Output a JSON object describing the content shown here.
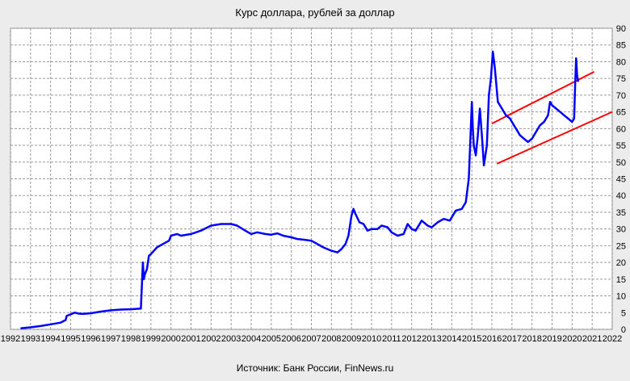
{
  "chart_data": {
    "type": "line",
    "title": "Курс доллара,  рублей  за доллар",
    "source": "Источник: Банк России, FinNews.ru",
    "xlabel": "",
    "ylabel": "",
    "xlim": [
      1992,
      2022
    ],
    "ylim": [
      0,
      90
    ],
    "x_ticks": [
      1992,
      1993,
      1994,
      1995,
      1996,
      1997,
      1998,
      1999,
      2000,
      2001,
      2002,
      2003,
      2004,
      2005,
      2006,
      2007,
      2008,
      2009,
      2010,
      2011,
      2012,
      2013,
      2014,
      2015,
      2016,
      2017,
      2018,
      2019,
      2020,
      2021,
      2022
    ],
    "y_ticks": [
      0,
      5,
      10,
      15,
      20,
      25,
      30,
      35,
      40,
      45,
      50,
      55,
      60,
      65,
      70,
      75,
      80,
      85,
      90
    ],
    "grid": true,
    "y_axis_position": "right",
    "series": [
      {
        "color": "#0000ff",
        "x": [
          1992.5,
          1993.0,
          1993.5,
          1994.0,
          1994.5,
          1994.75,
          1994.8,
          1995.0,
          1995.2,
          1995.4,
          1995.6,
          1996.0,
          1996.5,
          1997.0,
          1997.5,
          1998.0,
          1998.5,
          1998.6,
          1998.65,
          1998.7,
          1998.8,
          1998.9,
          1999.0,
          1999.3,
          1999.6,
          1999.9,
          2000.0,
          2000.3,
          2000.5,
          2001.0,
          2001.5,
          2002.0,
          2002.5,
          2003.0,
          2003.3,
          2003.7,
          2004.0,
          2004.3,
          2004.7,
          2005.0,
          2005.3,
          2005.6,
          2006.0,
          2006.3,
          2006.6,
          2007.0,
          2007.3,
          2007.6,
          2008.0,
          2008.3,
          2008.5,
          2008.7,
          2008.85,
          2009.0,
          2009.1,
          2009.2,
          2009.4,
          2009.6,
          2009.8,
          2010.0,
          2010.3,
          2010.5,
          2010.8,
          2011.0,
          2011.3,
          2011.6,
          2011.8,
          2012.0,
          2012.2,
          2012.5,
          2012.8,
          2013.0,
          2013.3,
          2013.6,
          2013.9,
          2014.0,
          2014.2,
          2014.5,
          2014.7,
          2014.85,
          2014.95,
          2015.0,
          2015.05,
          2015.1,
          2015.2,
          2015.3,
          2015.4,
          2015.5,
          2015.6,
          2015.75,
          2015.85,
          2015.95,
          2016.05,
          2016.15,
          2016.3,
          2016.5,
          2016.7,
          2016.9,
          2017.0,
          2017.2,
          2017.4,
          2017.6,
          2017.8,
          2018.0,
          2018.2,
          2018.4,
          2018.6,
          2018.8,
          2018.9,
          2019.0,
          2019.2,
          2019.4,
          2019.6,
          2019.8,
          2020.0,
          2020.1,
          2020.15,
          2020.2,
          2020.25,
          2020.3
        ],
        "y": [
          0.3,
          0.6,
          1.0,
          1.5,
          2.0,
          2.8,
          4.0,
          4.5,
          5.0,
          4.7,
          4.6,
          4.8,
          5.3,
          5.7,
          5.9,
          6.0,
          6.2,
          20.0,
          15.0,
          16.5,
          18.0,
          22.0,
          22.5,
          24.5,
          25.5,
          26.5,
          28.0,
          28.5,
          28.0,
          28.5,
          29.5,
          31.0,
          31.5,
          31.5,
          31.0,
          29.5,
          28.5,
          29.0,
          28.5,
          28.3,
          28.7,
          28.0,
          27.5,
          27.0,
          26.8,
          26.5,
          25.5,
          24.5,
          23.5,
          23.0,
          24.0,
          25.5,
          28.0,
          34.0,
          36.0,
          34.5,
          32.0,
          31.5,
          29.5,
          30.0,
          30.0,
          31.0,
          30.5,
          29.0,
          28.0,
          28.5,
          31.5,
          30.0,
          29.5,
          32.5,
          31.0,
          30.5,
          32.0,
          33.0,
          32.5,
          33.5,
          35.5,
          36.0,
          38.0,
          45.0,
          60.0,
          68.0,
          60.0,
          55.0,
          52.0,
          58.0,
          66.0,
          58.0,
          49.0,
          55.0,
          70.0,
          75.0,
          83.0,
          78.0,
          68.0,
          66.0,
          64.0,
          63.0,
          62.0,
          60.0,
          58.0,
          57.0,
          56.0,
          57.0,
          59.0,
          61.0,
          62.0,
          64.0,
          68.0,
          67.0,
          66.0,
          65.0,
          64.0,
          63.0,
          62.0,
          63.0,
          73.0,
          81.0,
          76.0,
          74.0
        ]
      }
    ],
    "trend_lines": [
      {
        "color": "#ff0000",
        "x": [
          2016.0,
          2021.1
        ],
        "y": [
          61.5,
          77.0
        ]
      },
      {
        "color": "#ff0000",
        "x": [
          2016.25,
          2022.0
        ],
        "y": [
          49.5,
          65.0
        ]
      }
    ]
  }
}
